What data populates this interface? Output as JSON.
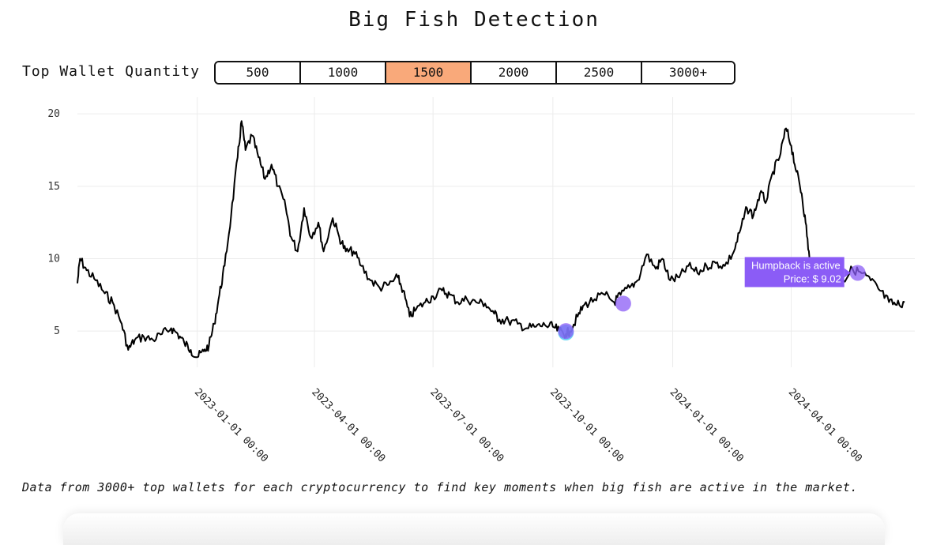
{
  "page": {
    "title": "Big Fish Detection",
    "caption": "Data from 3000+ top wallets for each cryptocurrency to find key moments when big fish are active in the market."
  },
  "quantity_selector": {
    "label": "Top Wallet Quantity",
    "options": [
      "500",
      "1000",
      "1500",
      "2000",
      "2500",
      "3000+"
    ],
    "selected": "1500",
    "active_color": "#f9a97a"
  },
  "chart_data": {
    "type": "line",
    "title": "",
    "xlabel": "",
    "ylabel": "",
    "x_axis": "date",
    "xlim": [
      "2022-10-01",
      "2024-06-30"
    ],
    "ylim": [
      2.5,
      20.5
    ],
    "y_ticks": [
      5,
      10,
      15,
      20
    ],
    "x_ticks": [
      "2023-01-01 00:00",
      "2023-04-01 00:00",
      "2023-07-01 00:00",
      "2023-10-01 00:00",
      "2024-01-01 00:00",
      "2024-04-01 00:00"
    ],
    "grid": true,
    "line_color": "#000000",
    "series": [
      {
        "name": "",
        "points": [
          [
            "2022-10-01",
            8.3
          ],
          [
            "2022-10-03",
            10.0
          ],
          [
            "2022-10-08",
            9.2
          ],
          [
            "2022-10-15",
            8.5
          ],
          [
            "2022-10-22",
            7.6
          ],
          [
            "2022-10-28",
            7.0
          ],
          [
            "2022-11-04",
            5.5
          ],
          [
            "2022-11-09",
            3.7
          ],
          [
            "2022-11-14",
            4.4
          ],
          [
            "2022-11-21",
            4.6
          ],
          [
            "2022-11-28",
            4.4
          ],
          [
            "2022-12-05",
            4.8
          ],
          [
            "2022-12-12",
            5.2
          ],
          [
            "2022-12-17",
            4.8
          ],
          [
            "2022-12-22",
            4.2
          ],
          [
            "2022-12-27",
            3.7
          ],
          [
            "2023-01-01",
            3.2
          ],
          [
            "2023-01-06",
            3.6
          ],
          [
            "2023-01-10",
            4.0
          ],
          [
            "2023-01-14",
            5.5
          ],
          [
            "2023-01-18",
            7.5
          ],
          [
            "2023-01-22",
            9.5
          ],
          [
            "2023-01-27",
            13.0
          ],
          [
            "2023-02-01",
            17.0
          ],
          [
            "2023-02-04",
            19.5
          ],
          [
            "2023-02-07",
            17.5
          ],
          [
            "2023-02-12",
            18.5
          ],
          [
            "2023-02-17",
            17.0
          ],
          [
            "2023-02-22",
            15.5
          ],
          [
            "2023-02-27",
            16.5
          ],
          [
            "2023-03-04",
            15.0
          ],
          [
            "2023-03-10",
            13.5
          ],
          [
            "2023-03-14",
            11.5
          ],
          [
            "2023-03-19",
            10.5
          ],
          [
            "2023-03-24",
            13.5
          ],
          [
            "2023-03-29",
            11.5
          ],
          [
            "2023-04-04",
            12.5
          ],
          [
            "2023-04-08",
            10.5
          ],
          [
            "2023-04-15",
            12.8
          ],
          [
            "2023-04-20",
            11.5
          ],
          [
            "2023-04-25",
            10.5
          ],
          [
            "2023-05-01",
            10.5
          ],
          [
            "2023-05-07",
            9.5
          ],
          [
            "2023-05-14",
            8.5
          ],
          [
            "2023-05-21",
            8.0
          ],
          [
            "2023-05-28",
            8.2
          ],
          [
            "2023-06-04",
            8.7
          ],
          [
            "2023-06-08",
            7.8
          ],
          [
            "2023-06-13",
            6.0
          ],
          [
            "2023-06-18",
            6.5
          ],
          [
            "2023-06-25",
            7.0
          ],
          [
            "2023-07-01",
            7.4
          ],
          [
            "2023-07-08",
            7.8
          ],
          [
            "2023-07-14",
            7.5
          ],
          [
            "2023-07-20",
            7.0
          ],
          [
            "2023-07-27",
            7.2
          ],
          [
            "2023-08-03",
            7.0
          ],
          [
            "2023-08-10",
            6.9
          ],
          [
            "2023-08-17",
            6.2
          ],
          [
            "2023-08-21",
            5.8
          ],
          [
            "2023-08-28",
            5.7
          ],
          [
            "2023-09-04",
            5.5
          ],
          [
            "2023-09-11",
            5.2
          ],
          [
            "2023-09-18",
            5.3
          ],
          [
            "2023-09-25",
            5.4
          ],
          [
            "2023-10-01",
            5.3
          ],
          [
            "2023-10-06",
            5.0
          ],
          [
            "2023-10-11",
            4.8
          ],
          [
            "2023-10-14",
            5.0
          ],
          [
            "2023-10-20",
            6.0
          ],
          [
            "2023-10-25",
            6.8
          ],
          [
            "2023-11-02",
            7.2
          ],
          [
            "2023-11-10",
            7.5
          ],
          [
            "2023-11-17",
            7.0
          ],
          [
            "2023-11-22",
            7.5
          ],
          [
            "2023-11-29",
            8.0
          ],
          [
            "2023-12-05",
            8.5
          ],
          [
            "2023-12-12",
            10.3
          ],
          [
            "2023-12-19",
            9.3
          ],
          [
            "2023-12-24",
            10.0
          ],
          [
            "2023-12-30",
            8.5
          ],
          [
            "2024-01-06",
            8.7
          ],
          [
            "2024-01-13",
            9.5
          ],
          [
            "2024-01-20",
            9.0
          ],
          [
            "2024-01-27",
            9.5
          ],
          [
            "2024-02-03",
            9.7
          ],
          [
            "2024-02-10",
            9.5
          ],
          [
            "2024-02-17",
            10.5
          ],
          [
            "2024-02-22",
            12.0
          ],
          [
            "2024-02-27",
            13.5
          ],
          [
            "2024-03-03",
            13.0
          ],
          [
            "2024-03-08",
            14.5
          ],
          [
            "2024-03-13",
            14.0
          ],
          [
            "2024-03-18",
            16.0
          ],
          [
            "2024-03-23",
            17.0
          ],
          [
            "2024-03-28",
            19.0
          ],
          [
            "2024-04-01",
            17.8
          ],
          [
            "2024-04-05",
            16.0
          ],
          [
            "2024-04-09",
            14.5
          ],
          [
            "2024-04-12",
            12.5
          ],
          [
            "2024-04-15",
            10.0
          ],
          [
            "2024-04-20",
            9.5
          ],
          [
            "2024-04-27",
            9.0
          ],
          [
            "2024-05-04",
            8.8
          ],
          [
            "2024-05-11",
            8.5
          ],
          [
            "2024-05-18",
            9.3
          ],
          [
            "2024-05-25",
            9.0
          ],
          [
            "2024-06-01",
            8.5
          ],
          [
            "2024-06-08",
            7.8
          ],
          [
            "2024-06-15",
            7.0
          ],
          [
            "2024-06-21",
            6.8
          ],
          [
            "2024-06-27",
            7.0
          ]
        ]
      }
    ],
    "markers": [
      {
        "date": "2023-10-11",
        "value": 4.9,
        "color": "#3ec8f0"
      },
      {
        "date": "2023-10-11",
        "value": 5.0,
        "color": "#8b5cf6"
      },
      {
        "date": "2023-11-24",
        "value": 6.9,
        "color": "#8b5cf6"
      },
      {
        "date": "2024-05-22",
        "value": 9.02,
        "color": "#8b5cf6"
      }
    ],
    "tooltip": {
      "line1": "Humpback is active",
      "line2": "Price: $ 9.02",
      "color": "#8b5cf6",
      "anchor_date": "2024-05-22",
      "anchor_value": 9.02
    }
  }
}
